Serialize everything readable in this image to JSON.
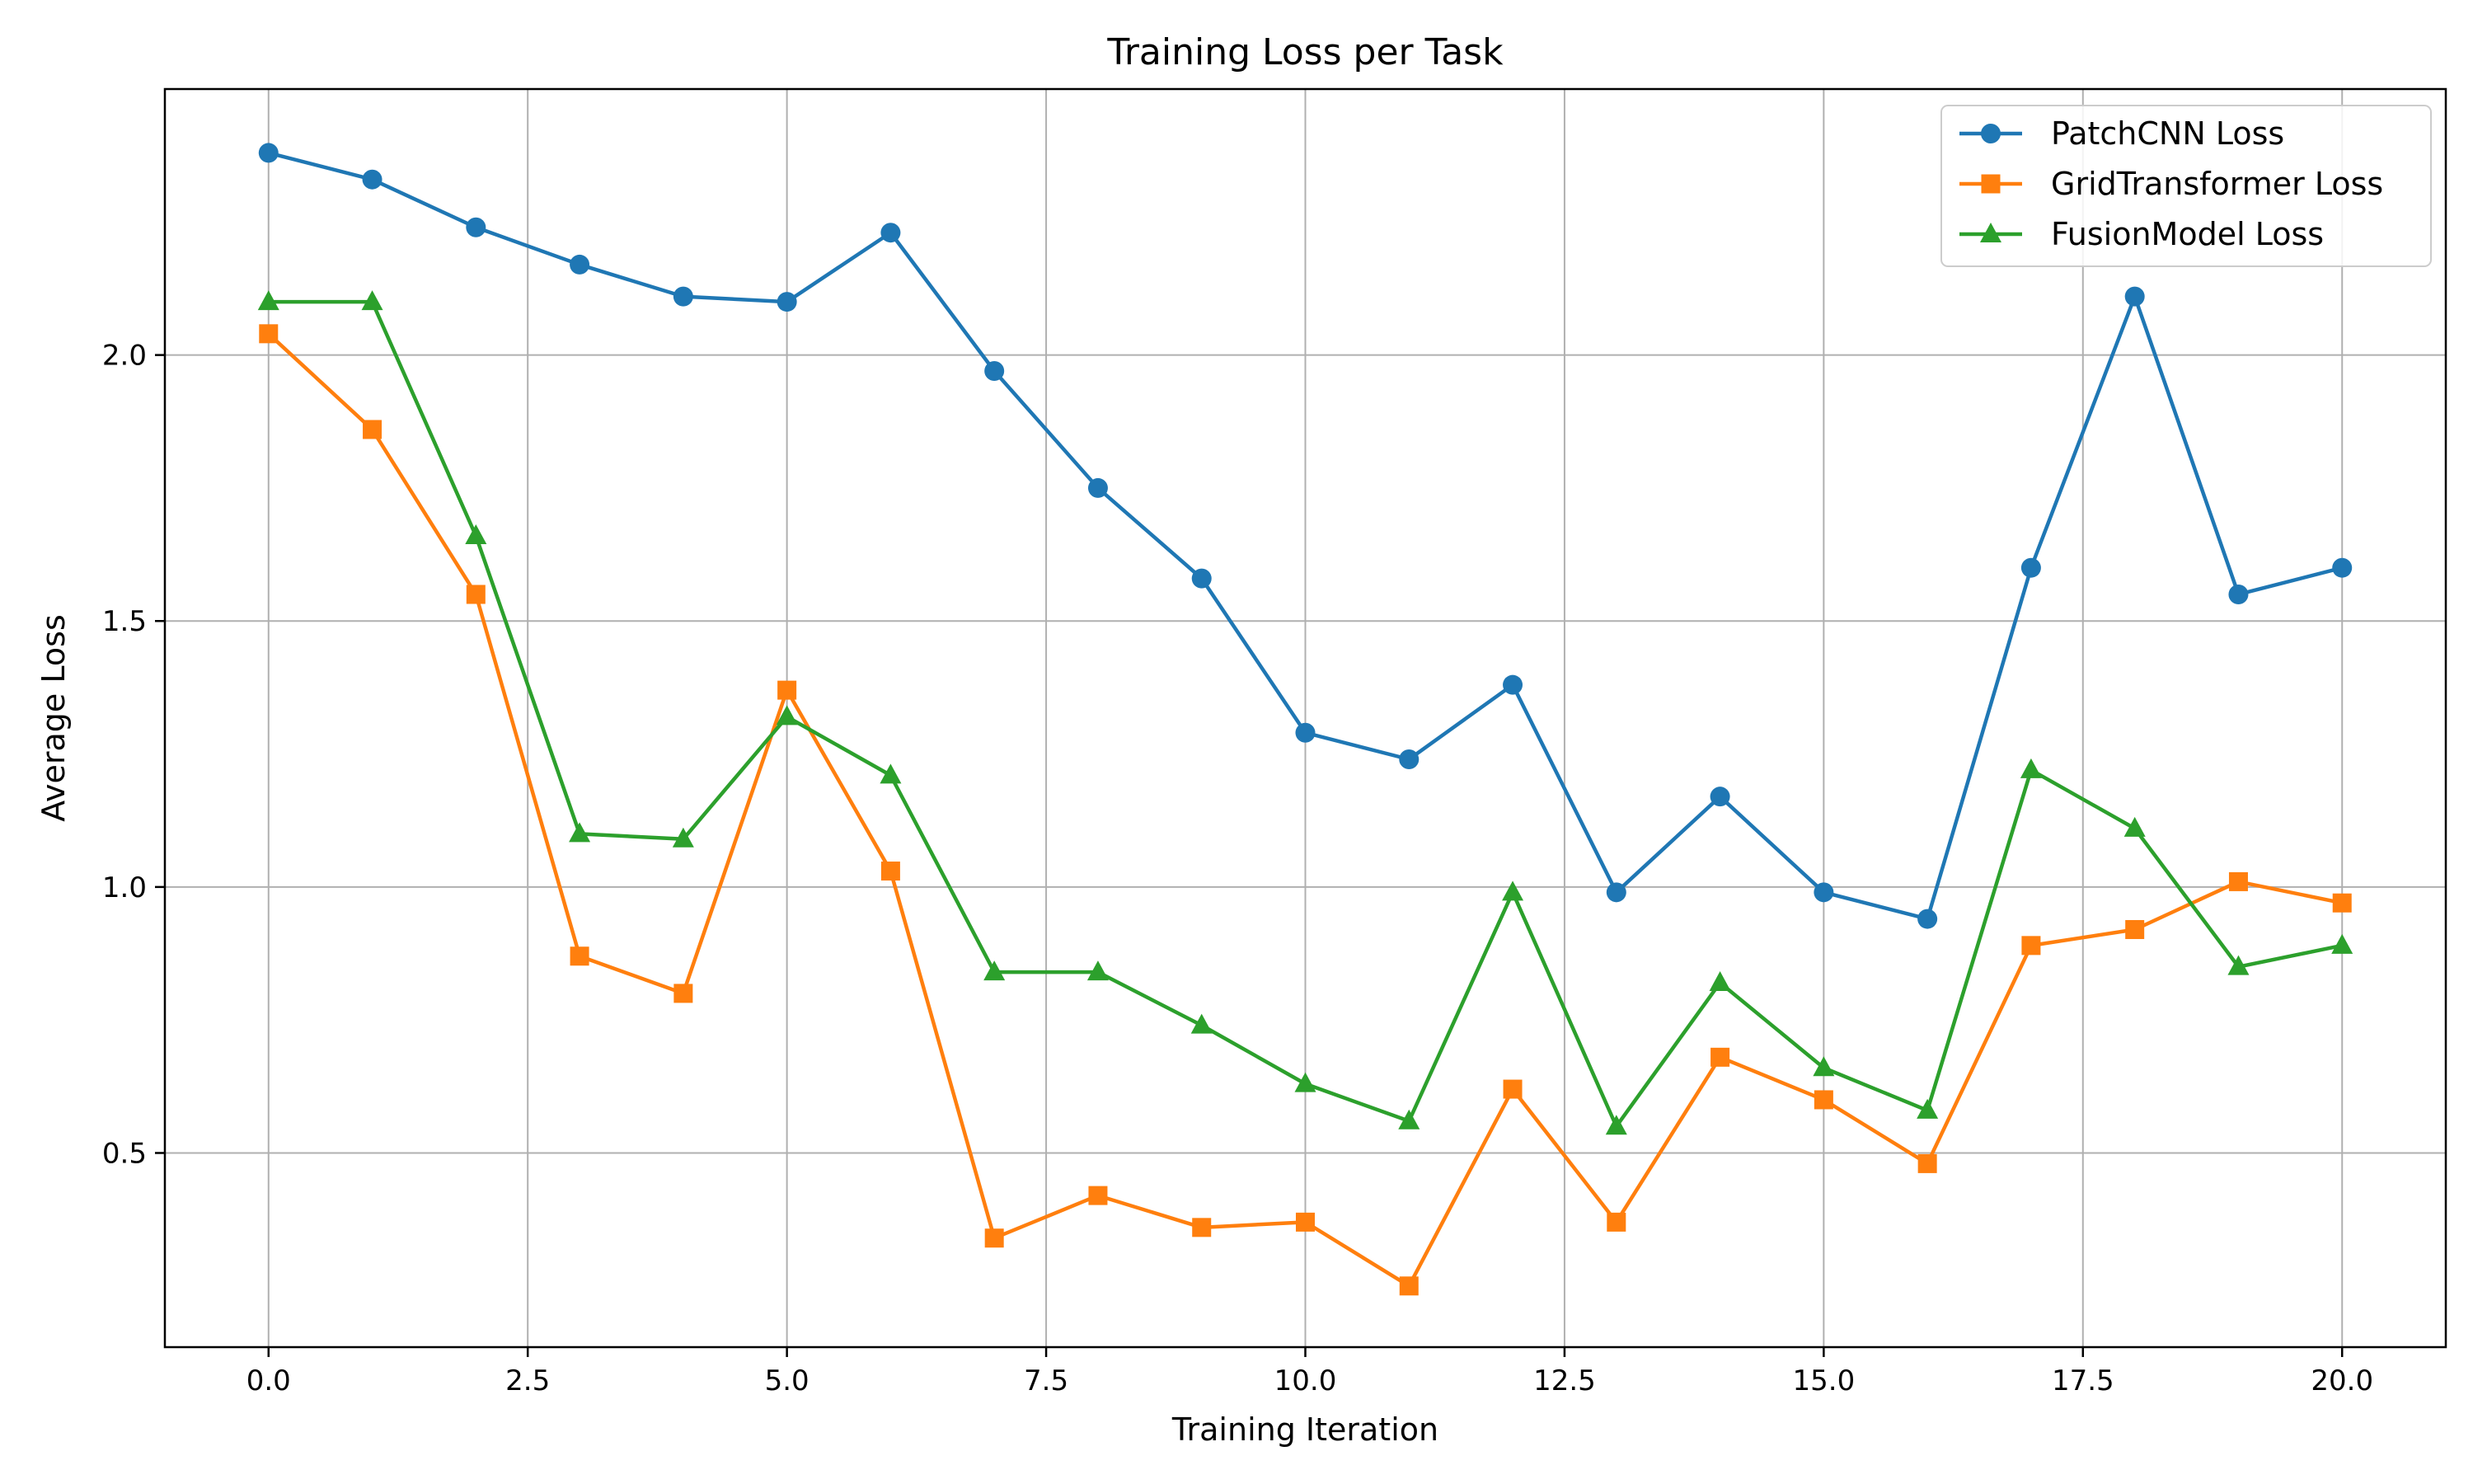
{
  "chart_data": {
    "type": "line",
    "title": "Training Loss per Task",
    "xlabel": "Training Iteration",
    "ylabel": "Average Loss",
    "xlim": [
      -1.0,
      21.0
    ],
    "ylim": [
      0.135,
      2.5
    ],
    "xticks": [
      0.0,
      2.5,
      5.0,
      7.5,
      10.0,
      12.5,
      15.0,
      17.5,
      20.0
    ],
    "xtick_labels": [
      "0.0",
      "2.5",
      "5.0",
      "7.5",
      "10.0",
      "12.5",
      "15.0",
      "17.5",
      "20.0"
    ],
    "yticks": [
      0.5,
      1.0,
      1.5,
      2.0
    ],
    "ytick_labels": [
      "0.5",
      "1.0",
      "1.5",
      "2.0"
    ],
    "grid": true,
    "legend_position": "top-right",
    "x": [
      0,
      1,
      2,
      3,
      4,
      5,
      6,
      7,
      8,
      9,
      10,
      11,
      12,
      13,
      14,
      15,
      16,
      17,
      18,
      19,
      20
    ],
    "series": [
      {
        "name": "PatchCNN Loss",
        "color": "#1f77b4",
        "marker": "circle",
        "values": [
          2.38,
          2.33,
          2.24,
          2.17,
          2.11,
          2.1,
          2.23,
          1.97,
          1.75,
          1.58,
          1.29,
          1.24,
          1.38,
          0.99,
          1.17,
          0.99,
          0.94,
          1.6,
          2.11,
          1.55,
          1.6
        ]
      },
      {
        "name": "GridTransformer Loss",
        "color": "#ff7f0e",
        "marker": "square",
        "values": [
          2.04,
          1.86,
          1.55,
          0.87,
          0.8,
          1.37,
          1.03,
          0.34,
          0.42,
          0.36,
          0.37,
          0.25,
          0.62,
          0.37,
          0.68,
          0.6,
          0.48,
          0.89,
          0.92,
          1.01,
          0.97
        ]
      },
      {
        "name": "FusionModel Loss",
        "color": "#2ca02c",
        "marker": "triangle",
        "values": [
          2.1,
          2.1,
          1.66,
          1.1,
          1.09,
          1.32,
          1.21,
          0.84,
          0.84,
          0.74,
          0.63,
          0.56,
          0.99,
          0.55,
          0.82,
          0.66,
          0.58,
          1.22,
          1.11,
          0.85,
          0.89
        ]
      }
    ]
  }
}
